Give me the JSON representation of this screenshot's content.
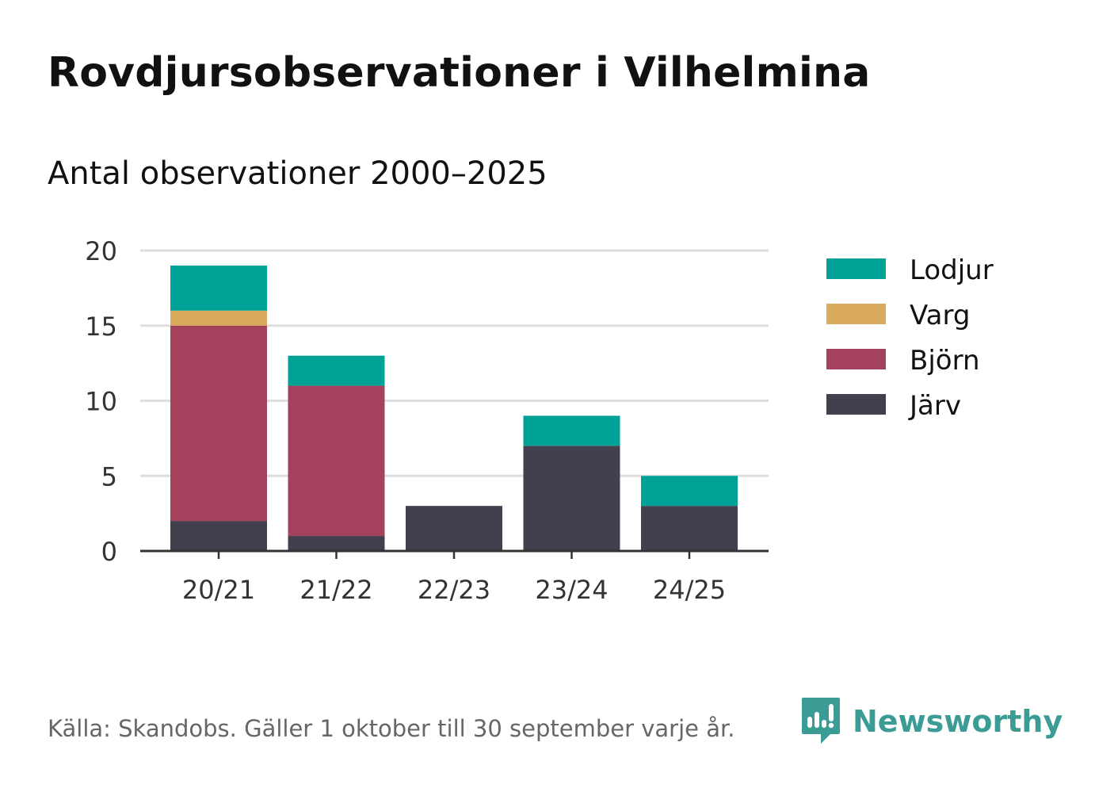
{
  "header": {
    "title": "Rovdjursobservationer i Vilhelmina",
    "subtitle": "Antal observationer 2000–2025"
  },
  "footer": {
    "source": "Källa: Skandobs. Gäller 1 oktober till 30 september varje år.",
    "brand": "Newsworthy",
    "brand_icon": "newsworthy-logo-icon",
    "brand_color": "#3a9c95"
  },
  "chart_data": {
    "type": "bar",
    "stacked": true,
    "categories": [
      "20/21",
      "21/22",
      "22/23",
      "23/24",
      "24/25"
    ],
    "series": [
      {
        "name": "Järv",
        "color": "#42404f",
        "values": [
          2,
          1,
          3,
          7,
          3
        ]
      },
      {
        "name": "Björn",
        "color": "#a4425d",
        "values": [
          13,
          10,
          0,
          0,
          0
        ]
      },
      {
        "name": "Varg",
        "color": "#dbab5d",
        "values": [
          1,
          0,
          0,
          0,
          0
        ]
      },
      {
        "name": "Lodjur",
        "color": "#00a298",
        "values": [
          3,
          2,
          0,
          2,
          2
        ]
      }
    ],
    "legend_order": [
      "Lodjur",
      "Varg",
      "Björn",
      "Järv"
    ],
    "legend_position": "right",
    "ylim": [
      0,
      20
    ],
    "yticks": [
      0,
      5,
      10,
      15,
      20
    ],
    "grid": true,
    "xlabel": "",
    "ylabel": ""
  }
}
